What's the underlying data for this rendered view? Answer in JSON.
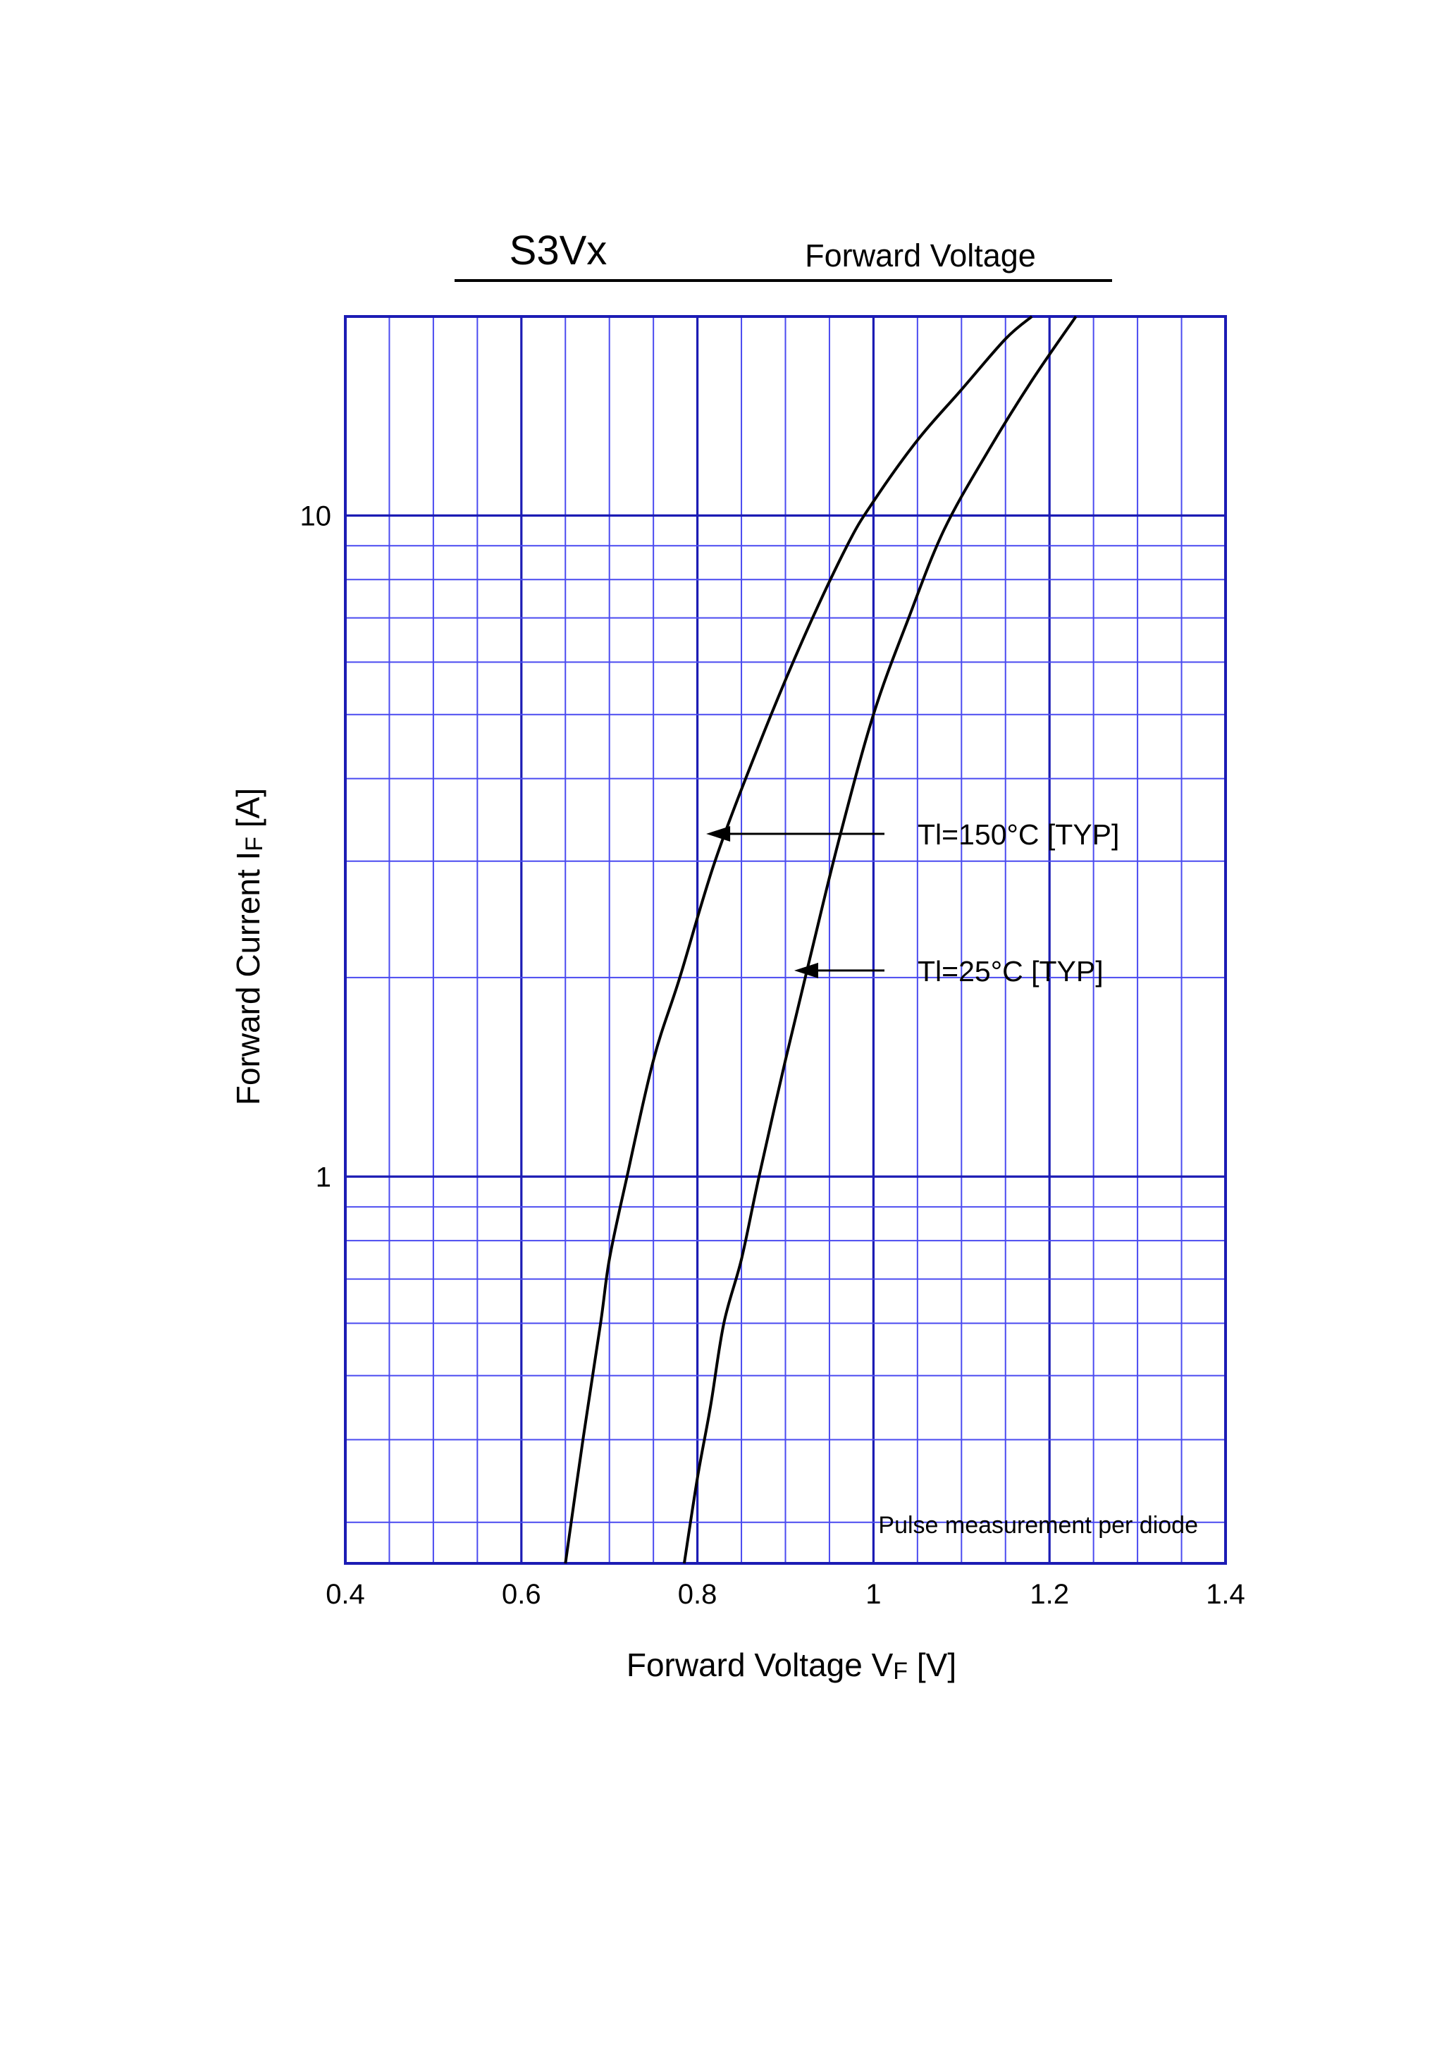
{
  "header": {
    "part": "S3Vx",
    "name": "Forward Voltage"
  },
  "chart_data": {
    "type": "line",
    "x_scale": "linear",
    "y_scale": "log",
    "xlim": [
      0.4,
      1.4
    ],
    "ylim": [
      0.26,
      20
    ],
    "grid": true,
    "xlabel": {
      "main": "Forward Voltage  V",
      "sub": "F",
      "unit": "  [V]"
    },
    "ylabel": {
      "main": "Forward Current  I",
      "sub": "F",
      "unit": "  [A]"
    },
    "x_ticks": [
      {
        "value": 0.4,
        "label": "0.4"
      },
      {
        "value": 0.6,
        "label": "0.6"
      },
      {
        "value": 0.8,
        "label": "0.8"
      },
      {
        "value": 1.0,
        "label": "1"
      },
      {
        "value": 1.2,
        "label": "1.2"
      },
      {
        "value": 1.4,
        "label": "1.4"
      }
    ],
    "y_ticks": [
      {
        "value": 1,
        "label": "1"
      },
      {
        "value": 10,
        "label": "10"
      }
    ],
    "note": "Pulse  measurement  per  diode",
    "series": [
      {
        "name": "Tl=150°C [TYP]",
        "x": [
          0.65,
          0.67,
          0.69,
          0.7,
          0.72,
          0.75,
          0.78,
          0.82,
          0.87,
          0.92,
          0.97,
          1.0,
          1.05,
          1.1,
          1.15,
          1.18
        ],
        "y": [
          0.26,
          0.4,
          0.6,
          0.75,
          1.0,
          1.5,
          2.0,
          3.0,
          4.5,
          6.5,
          9.0,
          10.5,
          13.0,
          15.5,
          18.5,
          20.0
        ],
        "label_at": {
          "x": 0.81,
          "y": 3.3
        }
      },
      {
        "name": "Tl=25°C [TYP]",
        "x": [
          0.785,
          0.8,
          0.815,
          0.83,
          0.85,
          0.87,
          0.9,
          0.93,
          0.96,
          1.0,
          1.04,
          1.08,
          1.13,
          1.18,
          1.23
        ],
        "y": [
          0.26,
          0.35,
          0.45,
          0.6,
          0.75,
          1.0,
          1.5,
          2.2,
          3.2,
          5.0,
          7.0,
          9.5,
          12.5,
          16.0,
          20.0
        ],
        "label_at": {
          "x": 0.91,
          "y": 2.05
        }
      }
    ]
  },
  "colors": {
    "grid": "#4a4af0",
    "frame": "#1c1cb4",
    "curve": "#000000"
  }
}
